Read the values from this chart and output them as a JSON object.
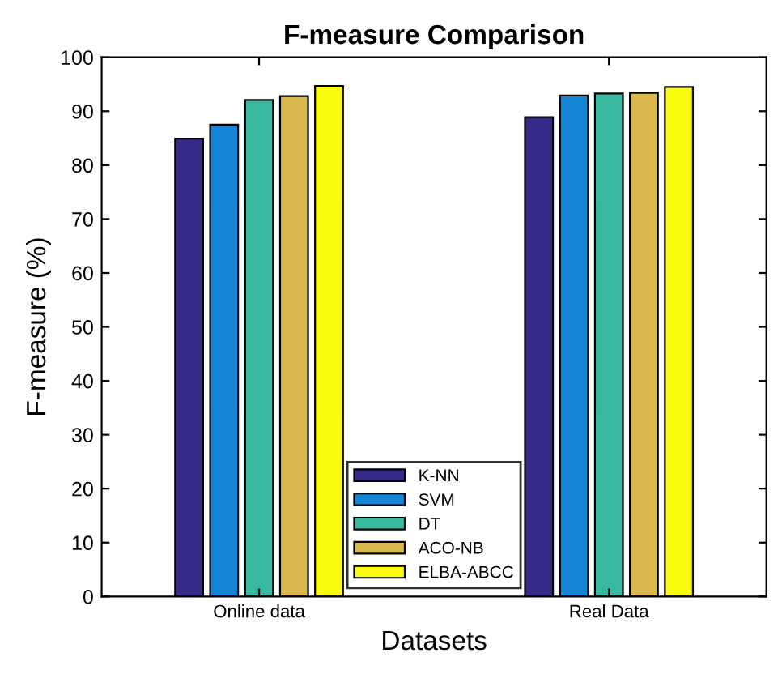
{
  "chart_data": {
    "type": "bar",
    "title": "F-measure Comparison",
    "xlabel": "Datasets",
    "ylabel": "F-measure (%)",
    "categories": [
      "Online data",
      "Real Data"
    ],
    "series": [
      {
        "name": "K-NN",
        "color": "#352a87",
        "values": [
          84.9,
          88.9
        ]
      },
      {
        "name": "SVM",
        "color": "#1485d4",
        "values": [
          87.5,
          92.9
        ]
      },
      {
        "name": "DT",
        "color": "#38b99e",
        "values": [
          92.1,
          93.3
        ]
      },
      {
        "name": "ACO-NB",
        "color": "#d9b94e",
        "values": [
          92.8,
          93.4
        ]
      },
      {
        "name": "ELBA-ABCC",
        "color": "#f9fb0e",
        "values": [
          94.7,
          94.5
        ]
      }
    ],
    "ylim": [
      0,
      100
    ],
    "yticks": [
      0,
      10,
      20,
      30,
      40,
      50,
      60,
      70,
      80,
      90,
      100
    ],
    "grid": false,
    "legend": "bottom"
  }
}
